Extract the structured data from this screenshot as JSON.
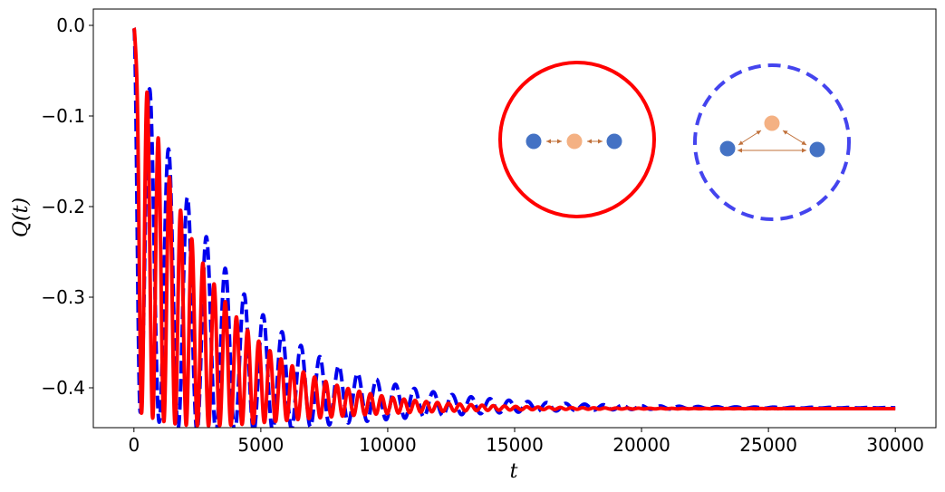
{
  "chart_data": {
    "type": "line",
    "xlabel": "t",
    "ylabel": "Q(t)",
    "xlim": [
      -1600,
      31600
    ],
    "ylim": [
      -0.444,
      0.018
    ],
    "xticks": [
      0,
      5000,
      10000,
      15000,
      20000,
      25000,
      30000
    ],
    "xtick_labels": [
      "0",
      "5000",
      "10000",
      "15000",
      "20000",
      "25000",
      "30000"
    ],
    "yticks": [
      0.0,
      -0.1,
      -0.2,
      -0.3,
      -0.4
    ],
    "ytick_labels": [
      "0.0",
      "−0.1",
      "−0.2",
      "−0.3",
      "−0.4"
    ],
    "grid": false,
    "series": [
      {
        "style": "dashed",
        "color": "#0000ee",
        "x_range": [
          0,
          30000
        ],
        "start": -0.003,
        "final": -0.422,
        "first_trough_t": 250,
        "period": 745,
        "envelope_decay_t": 4300,
        "drift_decay_t": 3000
      },
      {
        "style": "solid",
        "color": "#ff0000",
        "x_range": [
          0,
          30000
        ],
        "start": -0.003,
        "final": -0.423,
        "first_trough_t": 300,
        "period": 440,
        "envelope_decay_t": 3200,
        "drift_decay_t": 2500
      }
    ],
    "insets": [
      {
        "name": "linear-chain",
        "border_color": "#ff0000",
        "border_style": "solid",
        "node_colors": [
          "#4472c4",
          "#f4b183",
          "#4472c4"
        ],
        "arrow_color": "#c0703a"
      },
      {
        "name": "triangle",
        "border_color": "#4444ee",
        "border_style": "dashed",
        "node_colors": [
          "#4472c4",
          "#f4b183",
          "#4472c4"
        ],
        "arrow_color": "#c0703a"
      }
    ]
  }
}
